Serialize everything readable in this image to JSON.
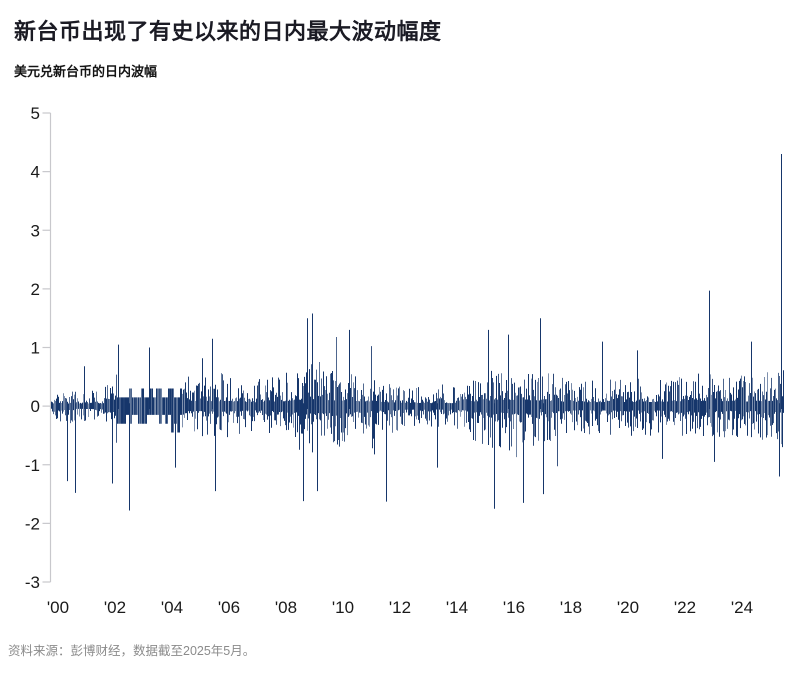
{
  "header": {
    "title": "新台币出现了有史以来的日内最大波动幅度",
    "subtitle": "美元兑新台币的日内波幅"
  },
  "footer": {
    "source": "资料来源：彭博财经，数据截至2025年5月。"
  },
  "colors": {
    "line": "#16366b",
    "line_light": "#8fa3c4",
    "axis": "#c8c8cc",
    "tick_label": "#1a1a1a",
    "title": "#1b1b24",
    "source": "#8b8b8b",
    "background": "#ffffff"
  },
  "chart_data": {
    "type": "line",
    "title": "新台币出现了有史以来的日内最大波动幅度",
    "subtitle": "美元兑新台币的日内波幅",
    "series_name": "美元兑新台币的日内波幅",
    "x_range": [
      1999.75,
      2025.45
    ],
    "ylim": [
      -3,
      5
    ],
    "yticks": [
      5,
      4,
      3,
      2,
      1,
      0,
      -1,
      -2,
      -3
    ],
    "xtick_labels": [
      "'00",
      "'02",
      "'04",
      "'06",
      "'08",
      "'10",
      "'12",
      "'14",
      "'16",
      "'18",
      "'20",
      "'22",
      "'24"
    ],
    "xtick_years": [
      2000,
      2002,
      2004,
      2006,
      2008,
      2010,
      2012,
      2014,
      2016,
      2018,
      2020,
      2022,
      2024
    ],
    "grid": false,
    "legend": "none",
    "envelope_typical_amplitude": [
      [
        1999.75,
        0.16,
        0.18
      ],
      [
        2001.6,
        0.18,
        0.2
      ],
      [
        2002.0,
        0.42,
        0.44
      ],
      [
        2004.3,
        0.42,
        0.44
      ],
      [
        2004.6,
        0.3,
        0.32
      ],
      [
        2005.5,
        0.34,
        0.36
      ],
      [
        2006.8,
        0.26,
        0.28
      ],
      [
        2008.0,
        0.34,
        0.36
      ],
      [
        2008.8,
        0.48,
        0.5
      ],
      [
        2009.8,
        0.38,
        0.42
      ],
      [
        2010.5,
        0.34,
        0.38
      ],
      [
        2012.0,
        0.22,
        0.24
      ],
      [
        2013.8,
        0.2,
        0.22
      ],
      [
        2015.0,
        0.38,
        0.42
      ],
      [
        2016.0,
        0.42,
        0.46
      ],
      [
        2017.0,
        0.38,
        0.4
      ],
      [
        2018.2,
        0.26,
        0.28
      ],
      [
        2019.5,
        0.28,
        0.3
      ],
      [
        2021.0,
        0.28,
        0.3
      ],
      [
        2022.5,
        0.34,
        0.36
      ],
      [
        2023.5,
        0.3,
        0.32
      ],
      [
        2024.5,
        0.32,
        0.34
      ],
      [
        2025.4,
        0.38,
        0.42
      ]
    ],
    "notable_extremes": [
      [
        2000.3,
        -1.28
      ],
      [
        2000.6,
        -1.48
      ],
      [
        2000.9,
        0.68
      ],
      [
        2001.9,
        -1.32
      ],
      [
        2002.1,
        1.05
      ],
      [
        2002.5,
        -1.78
      ],
      [
        2003.2,
        1.0
      ],
      [
        2004.1,
        -1.05
      ],
      [
        2005.4,
        1.15
      ],
      [
        2005.52,
        -1.45
      ],
      [
        2008.6,
        -1.62
      ],
      [
        2008.75,
        1.5
      ],
      [
        2008.9,
        1.58
      ],
      [
        2009.1,
        -1.45
      ],
      [
        2010.2,
        1.3
      ],
      [
        2011.5,
        -1.63
      ],
      [
        2013.3,
        -1.05
      ],
      [
        2015.1,
        1.3
      ],
      [
        2015.3,
        -1.75
      ],
      [
        2015.8,
        1.22
      ],
      [
        2016.3,
        -1.65
      ],
      [
        2016.9,
        1.5
      ],
      [
        2017.0,
        -1.5
      ],
      [
        2019.1,
        1.1
      ],
      [
        2020.3,
        0.95
      ],
      [
        2021.2,
        -0.9
      ],
      [
        2022.85,
        1.97
      ],
      [
        2023.0,
        -0.95
      ],
      [
        2024.3,
        1.1
      ],
      [
        2025.3,
        -1.2
      ],
      [
        2025.37,
        4.3
      ],
      [
        2025.42,
        -0.7
      ]
    ],
    "quantized_period": [
      2002.05,
      2004.35
    ]
  }
}
